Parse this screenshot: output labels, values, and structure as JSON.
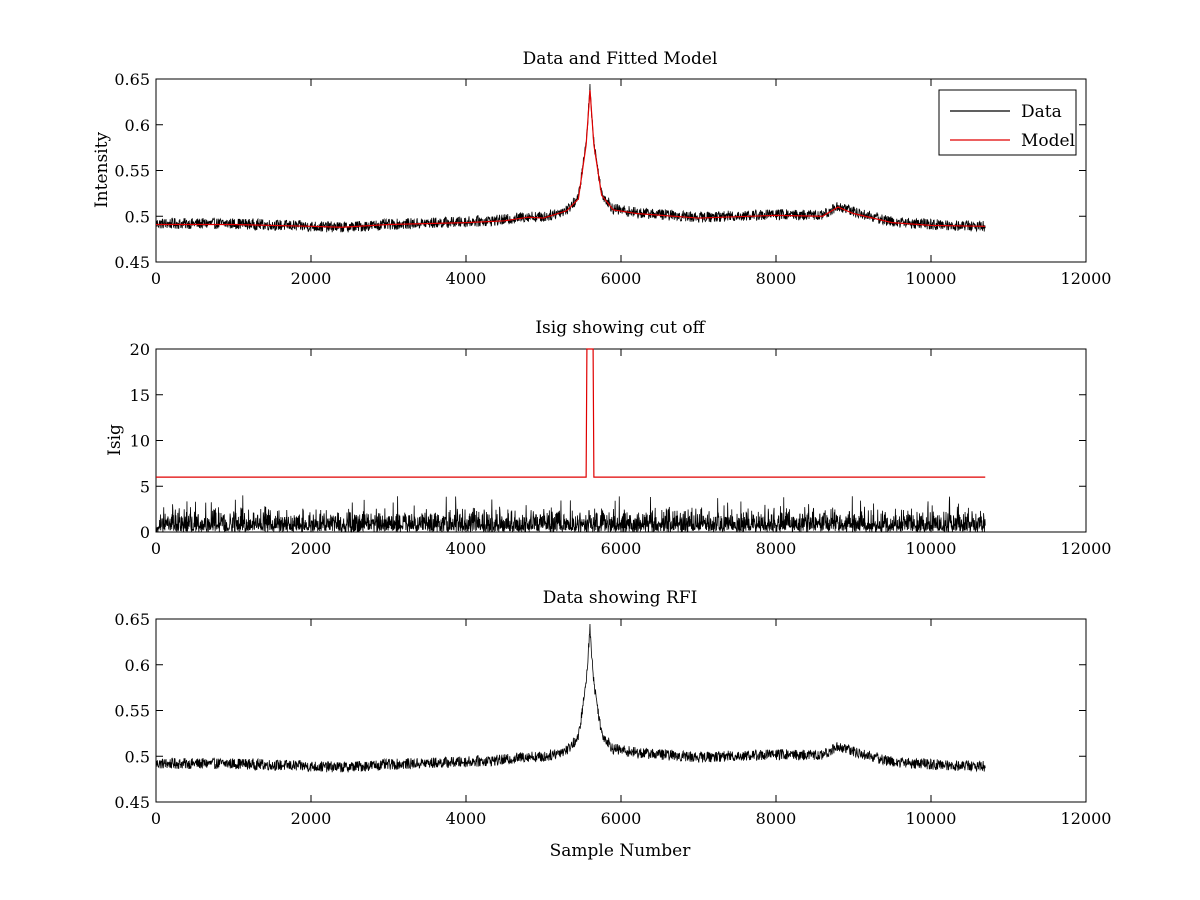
{
  "figure": {
    "background": "#ffffff"
  },
  "chart_data": [
    {
      "type": "line",
      "title": "Data and Fitted Model",
      "xlabel": "",
      "ylabel": "Intensity",
      "xlim": [
        0,
        12000
      ],
      "ylim": [
        0.45,
        0.65
      ],
      "xticks": [
        0,
        2000,
        4000,
        6000,
        8000,
        10000,
        12000
      ],
      "yticks": [
        0.45,
        0.5,
        0.55,
        0.6,
        0.65
      ],
      "xtick_labels": [
        "0",
        "2000",
        "4000",
        "6000",
        "8000",
        "10000",
        "12000"
      ],
      "ytick_labels": [
        "0.45",
        "0.5",
        "0.55",
        "0.6",
        "0.65"
      ],
      "grid": false,
      "legend": {
        "position": "top-right",
        "entries": [
          "Data",
          "Model"
        ]
      },
      "series": [
        {
          "name": "Data",
          "color": "#000000",
          "style": "noisy",
          "noise_amplitude": 0.006,
          "x": [
            0,
            1000,
            2000,
            2400,
            3000,
            4000,
            4500,
            4800,
            5000,
            5300,
            5450,
            5550,
            5600,
            5650,
            5750,
            5900,
            6200,
            7000,
            8000,
            8600,
            8800,
            9000,
            9500,
            10000,
            10700
          ],
          "y": [
            0.492,
            0.492,
            0.489,
            0.488,
            0.491,
            0.494,
            0.496,
            0.5,
            0.499,
            0.507,
            0.52,
            0.58,
            0.64,
            0.58,
            0.525,
            0.508,
            0.504,
            0.499,
            0.502,
            0.501,
            0.511,
            0.505,
            0.494,
            0.491,
            0.489
          ]
        },
        {
          "name": "Model",
          "color": "#e00000",
          "style": "smooth",
          "x": [
            0,
            1000,
            2000,
            2400,
            3000,
            4000,
            4500,
            4800,
            5000,
            5300,
            5450,
            5550,
            5600,
            5650,
            5750,
            5900,
            6200,
            7000,
            8000,
            8600,
            8800,
            9000,
            9500,
            10000,
            10700
          ],
          "y": [
            0.491,
            0.491,
            0.489,
            0.488,
            0.491,
            0.493,
            0.495,
            0.499,
            0.498,
            0.506,
            0.519,
            0.578,
            0.638,
            0.578,
            0.523,
            0.507,
            0.503,
            0.498,
            0.501,
            0.5,
            0.51,
            0.503,
            0.493,
            0.49,
            0.489
          ]
        }
      ]
    },
    {
      "type": "line",
      "title": "Isig showing cut off",
      "xlabel": "",
      "ylabel": "Isig",
      "xlim": [
        0,
        12000
      ],
      "ylim": [
        0,
        20
      ],
      "xticks": [
        0,
        2000,
        4000,
        6000,
        8000,
        10000,
        12000
      ],
      "yticks": [
        0,
        5,
        10,
        15,
        20
      ],
      "xtick_labels": [
        "0",
        "2000",
        "4000",
        "6000",
        "8000",
        "10000",
        "12000"
      ],
      "ytick_labels": [
        "0",
        "5",
        "10",
        "15",
        "20"
      ],
      "grid": false,
      "series": [
        {
          "name": "Isig",
          "color": "#000000",
          "style": "abs-noise",
          "x_range": [
            0,
            10700
          ],
          "typical_max": 2.5,
          "peak_max": 4
        },
        {
          "name": "cut off",
          "color": "#e00000",
          "style": "step",
          "x": [
            0,
            5550,
            5560,
            5640,
            5650,
            10700
          ],
          "y": [
            6,
            6,
            20,
            20,
            6,
            6
          ]
        }
      ]
    },
    {
      "type": "line",
      "title": "Data showing RFI",
      "xlabel": "Sample Number",
      "ylabel": "",
      "xlim": [
        0,
        12000
      ],
      "ylim": [
        0.45,
        0.65
      ],
      "xticks": [
        0,
        2000,
        4000,
        6000,
        8000,
        10000,
        12000
      ],
      "yticks": [
        0.45,
        0.5,
        0.55,
        0.6,
        0.65
      ],
      "xtick_labels": [
        "0",
        "2000",
        "4000",
        "6000",
        "8000",
        "10000",
        "12000"
      ],
      "ytick_labels": [
        "0.45",
        "0.5",
        "0.55",
        "0.6",
        "0.65"
      ],
      "grid": false,
      "series": [
        {
          "name": "Data",
          "color": "#000000",
          "style": "noisy",
          "noise_amplitude": 0.006,
          "x": [
            0,
            1000,
            2000,
            2400,
            3000,
            4000,
            4500,
            4800,
            5000,
            5300,
            5450,
            5550,
            5600,
            5650,
            5750,
            5900,
            6200,
            7000,
            8000,
            8600,
            8800,
            9000,
            9500,
            10000,
            10700
          ],
          "y": [
            0.492,
            0.492,
            0.489,
            0.488,
            0.491,
            0.494,
            0.496,
            0.5,
            0.499,
            0.507,
            0.52,
            0.58,
            0.64,
            0.58,
            0.525,
            0.508,
            0.504,
            0.499,
            0.502,
            0.501,
            0.511,
            0.505,
            0.494,
            0.491,
            0.489
          ]
        }
      ]
    }
  ]
}
